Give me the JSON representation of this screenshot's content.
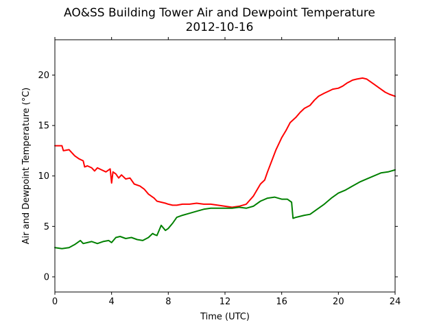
{
  "chart_data": {
    "type": "line",
    "title": "AO&SS Building Tower Air and Dewpoint Temperature",
    "subtitle": "2012-10-16",
    "xlabel": "Time (UTC)",
    "ylabel": "Air and Dewpoint Temperature (°C)",
    "xlim": [
      0,
      24
    ],
    "ylim": [
      -1.5,
      23.5
    ],
    "xticks": [
      0,
      4,
      8,
      12,
      16,
      20,
      24
    ],
    "yticks": [
      0,
      5,
      10,
      15,
      20
    ],
    "grid": false,
    "legend": "none",
    "series": [
      {
        "color": "#ff0000",
        "x": [
          0,
          0.5,
          0.6,
          1.0,
          1.4,
          1.7,
          2.0,
          2.1,
          2.3,
          2.6,
          2.8,
          3.0,
          3.3,
          3.6,
          3.9,
          4.0,
          4.1,
          4.3,
          4.5,
          4.7,
          5.0,
          5.3,
          5.6,
          6.0,
          6.3,
          6.6,
          7.0,
          7.2,
          7.5,
          7.8,
          8.0,
          8.3,
          8.6,
          9.0,
          9.5,
          10.0,
          10.5,
          11.0,
          11.5,
          12.0,
          12.5,
          13.0,
          13.5,
          14.0,
          14.5,
          14.8,
          15.0,
          15.3,
          15.6,
          16.0,
          16.3,
          16.6,
          17.0,
          17.3,
          17.6,
          18.0,
          18.3,
          18.6,
          19.0,
          19.3,
          19.6,
          20.0,
          20.3,
          20.6,
          21.0,
          21.3,
          21.7,
          22.0,
          22.3,
          22.6,
          23.0,
          23.3,
          23.6,
          24.0
        ],
        "values": [
          13.0,
          13.0,
          12.5,
          12.6,
          12.0,
          11.7,
          11.5,
          10.9,
          11.0,
          10.8,
          10.5,
          10.8,
          10.6,
          10.4,
          10.7,
          9.3,
          10.4,
          10.2,
          9.8,
          10.1,
          9.7,
          9.8,
          9.2,
          9.0,
          8.7,
          8.2,
          7.8,
          7.5,
          7.4,
          7.3,
          7.2,
          7.1,
          7.1,
          7.2,
          7.2,
          7.3,
          7.2,
          7.2,
          7.1,
          7.0,
          6.9,
          7.0,
          7.2,
          8.0,
          9.2,
          9.6,
          10.4,
          11.5,
          12.6,
          13.8,
          14.5,
          15.3,
          15.8,
          16.3,
          16.7,
          17.0,
          17.5,
          17.9,
          18.2,
          18.4,
          18.6,
          18.7,
          18.9,
          19.2,
          19.5,
          19.6,
          19.7,
          19.6,
          19.3,
          19.0,
          18.6,
          18.3,
          18.1,
          17.9
        ]
      },
      {
        "color": "#008000",
        "x": [
          0,
          0.5,
          1.0,
          1.4,
          1.8,
          2.0,
          2.3,
          2.6,
          3.0,
          3.4,
          3.8,
          4.0,
          4.3,
          4.6,
          5.0,
          5.4,
          5.8,
          6.2,
          6.6,
          6.9,
          7.0,
          7.2,
          7.5,
          7.8,
          8.0,
          8.3,
          8.6,
          9.0,
          9.5,
          10.0,
          10.5,
          11.0,
          11.5,
          12.0,
          12.5,
          13.0,
          13.5,
          14.0,
          14.5,
          15.0,
          15.5,
          16.0,
          16.4,
          16.7,
          16.8,
          17.0,
          17.3,
          17.6,
          18.0,
          18.5,
          19.0,
          19.5,
          20.0,
          20.5,
          21.0,
          21.5,
          22.0,
          22.5,
          23.0,
          23.5,
          24.0
        ],
        "values": [
          2.9,
          2.8,
          2.9,
          3.2,
          3.6,
          3.3,
          3.4,
          3.5,
          3.3,
          3.5,
          3.6,
          3.4,
          3.9,
          4.0,
          3.8,
          3.9,
          3.7,
          3.6,
          3.9,
          4.3,
          4.2,
          4.1,
          5.1,
          4.6,
          4.8,
          5.3,
          5.9,
          6.1,
          6.3,
          6.5,
          6.7,
          6.8,
          6.8,
          6.8,
          6.8,
          6.9,
          6.8,
          7.0,
          7.5,
          7.8,
          7.9,
          7.7,
          7.7,
          7.4,
          5.8,
          5.9,
          6.0,
          6.1,
          6.2,
          6.7,
          7.2,
          7.8,
          8.3,
          8.6,
          9.0,
          9.4,
          9.7,
          10.0,
          10.3,
          10.4,
          10.6
        ]
      }
    ]
  }
}
